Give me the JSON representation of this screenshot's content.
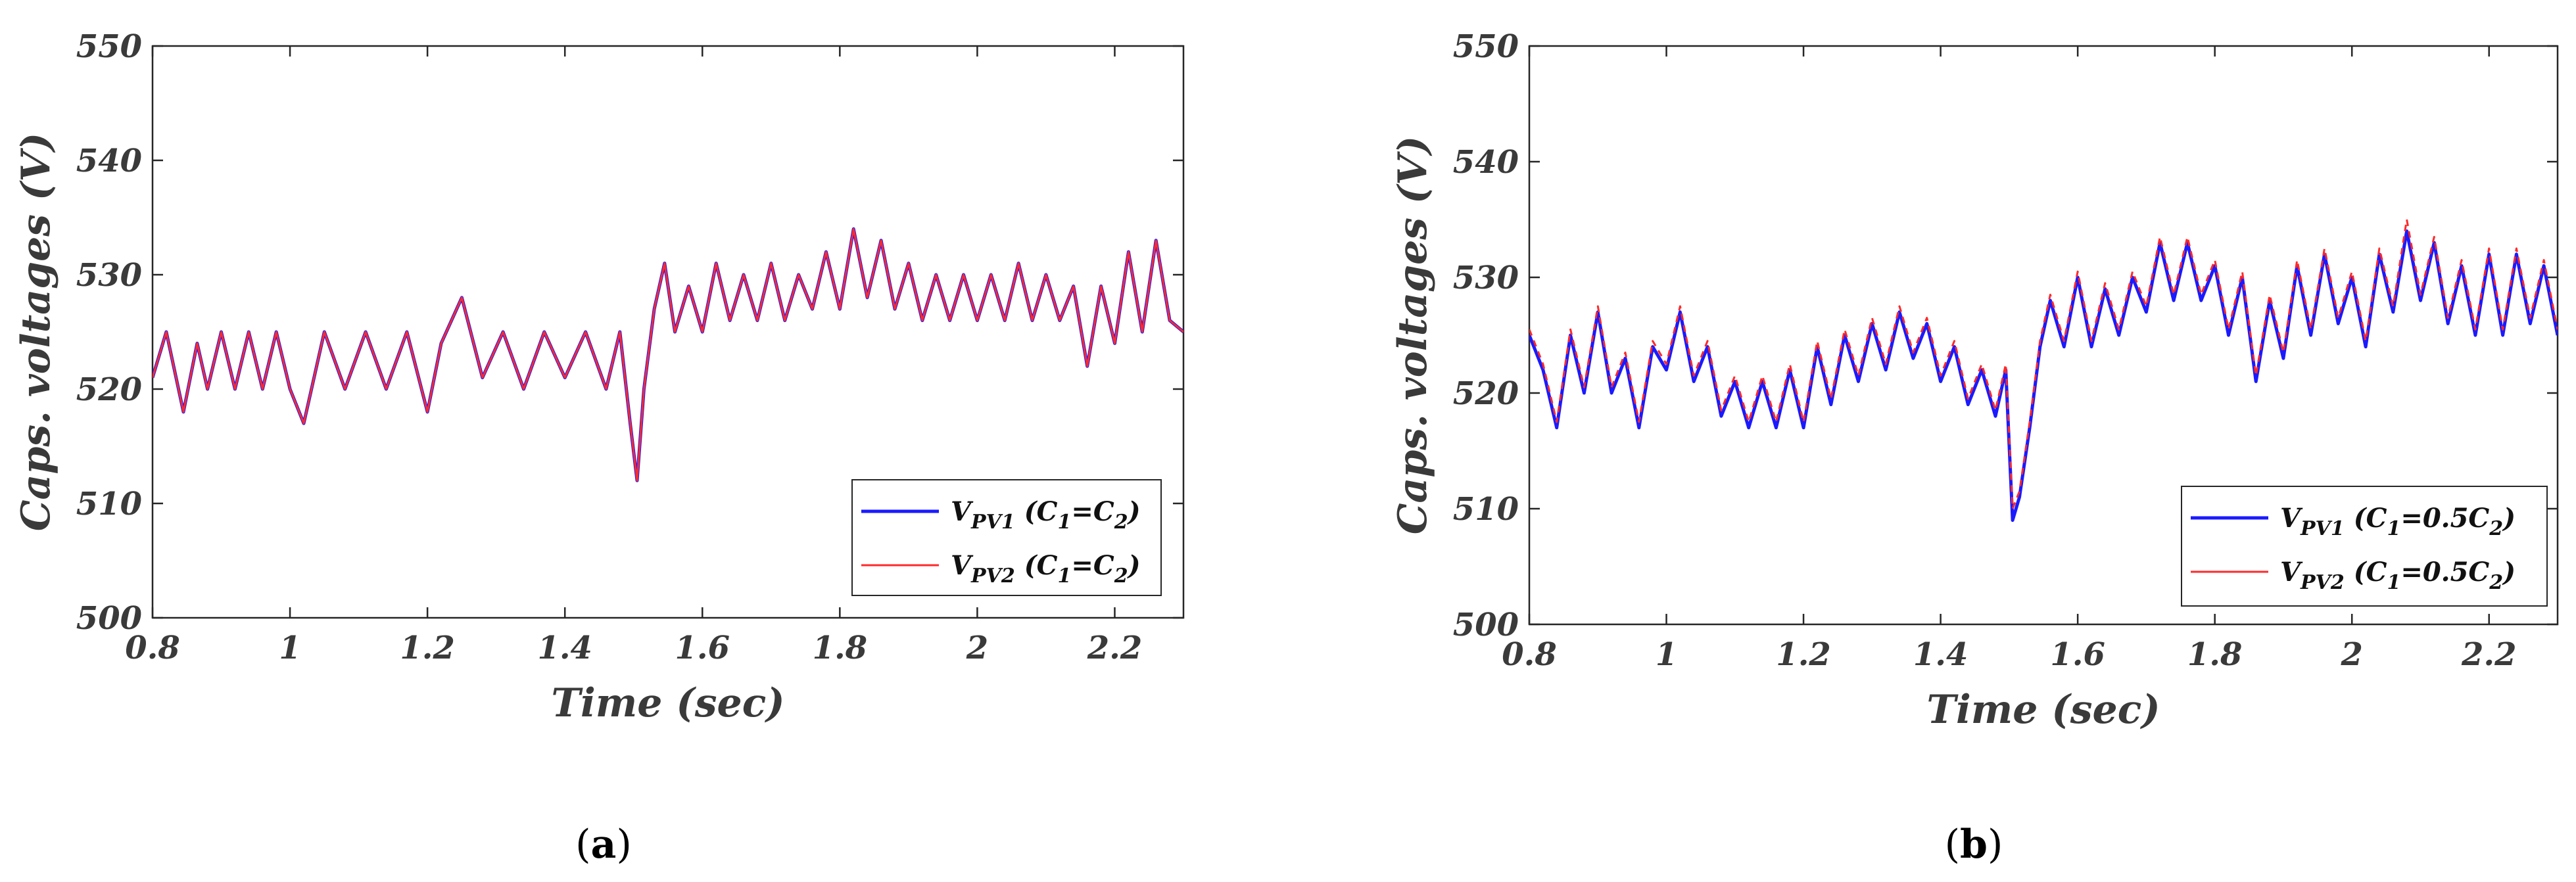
{
  "chart_data": [
    {
      "type": "line",
      "panel_label": "a",
      "title": "",
      "xlabel": "Time (sec)",
      "ylabel": "Caps. voltages (V)",
      "xlim": [
        0.8,
        2.3
      ],
      "ylim": [
        500,
        550
      ],
      "xticks": [
        0.8,
        1,
        1.2,
        1.4,
        1.6,
        1.8,
        2,
        2.2
      ],
      "xtick_labels": [
        "0.8",
        "1",
        "1.2",
        "1.4",
        "1.6",
        "1.8",
        "2",
        "2.2"
      ],
      "yticks": [
        500,
        510,
        520,
        530,
        540,
        550
      ],
      "ytick_labels": [
        "500",
        "510",
        "520",
        "530",
        "540",
        "550"
      ],
      "grid": false,
      "legend_position": "lower-right",
      "series": [
        {
          "name": "V_PV1 (C1=C2)",
          "legend_main": "V",
          "legend_sub1": "PV1",
          "legend_mid": " (C",
          "legend_sub2": "1",
          "legend_rest": "=C",
          "legend_sub3": "2",
          "legend_end": ")",
          "color": "#1a1aff",
          "dash": "",
          "x": [
            0.8,
            0.82,
            0.845,
            0.865,
            0.88,
            0.9,
            0.92,
            0.94,
            0.96,
            0.98,
            1.0,
            1.02,
            1.05,
            1.08,
            1.11,
            1.14,
            1.17,
            1.2,
            1.22,
            1.25,
            1.28,
            1.31,
            1.34,
            1.37,
            1.4,
            1.43,
            1.46,
            1.48,
            1.495,
            1.505,
            1.515,
            1.53,
            1.545,
            1.56,
            1.58,
            1.6,
            1.62,
            1.64,
            1.66,
            1.68,
            1.7,
            1.72,
            1.74,
            1.76,
            1.78,
            1.8,
            1.82,
            1.84,
            1.86,
            1.88,
            1.9,
            1.92,
            1.94,
            1.96,
            1.98,
            2.0,
            2.02,
            2.04,
            2.06,
            2.08,
            2.1,
            2.12,
            2.14,
            2.16,
            2.18,
            2.2,
            2.22,
            2.24,
            2.26,
            2.28,
            2.3
          ],
          "values": [
            521,
            525,
            518,
            524,
            520,
            525,
            520,
            525,
            520,
            525,
            520,
            517,
            525,
            520,
            525,
            520,
            525,
            518,
            524,
            528,
            521,
            525,
            520,
            525,
            521,
            525,
            520,
            525,
            517,
            512,
            520,
            527,
            531,
            525,
            529,
            525,
            531,
            526,
            530,
            526,
            531,
            526,
            530,
            527,
            532,
            527,
            534,
            528,
            533,
            527,
            531,
            526,
            530,
            526,
            530,
            526,
            530,
            526,
            531,
            526,
            530,
            526,
            529,
            522,
            529,
            524,
            532,
            525,
            533,
            526,
            525
          ]
        },
        {
          "name": "V_PV2 (C1=C2)",
          "legend_main": "V",
          "legend_sub1": "PV2",
          "legend_mid": " (C",
          "legend_sub2": "1",
          "legend_rest": "=C",
          "legend_sub3": "2",
          "legend_end": ")",
          "color": "#ff2a2a",
          "dash": "",
          "x": [
            0.8,
            0.82,
            0.845,
            0.865,
            0.88,
            0.9,
            0.92,
            0.94,
            0.96,
            0.98,
            1.0,
            1.02,
            1.05,
            1.08,
            1.11,
            1.14,
            1.17,
            1.2,
            1.22,
            1.25,
            1.28,
            1.31,
            1.34,
            1.37,
            1.4,
            1.43,
            1.46,
            1.48,
            1.495,
            1.505,
            1.515,
            1.53,
            1.545,
            1.56,
            1.58,
            1.6,
            1.62,
            1.64,
            1.66,
            1.68,
            1.7,
            1.72,
            1.74,
            1.76,
            1.78,
            1.8,
            1.82,
            1.84,
            1.86,
            1.88,
            1.9,
            1.92,
            1.94,
            1.96,
            1.98,
            2.0,
            2.02,
            2.04,
            2.06,
            2.08,
            2.1,
            2.12,
            2.14,
            2.16,
            2.18,
            2.2,
            2.22,
            2.24,
            2.26,
            2.28,
            2.3
          ],
          "values": [
            521,
            525,
            518,
            524,
            520,
            525,
            520,
            525,
            520,
            525,
            520,
            517,
            525,
            520,
            525,
            520,
            525,
            518,
            524,
            528,
            521,
            525,
            520,
            525,
            521,
            525,
            520,
            525,
            517,
            512,
            520,
            527,
            531,
            525,
            529,
            525,
            531,
            526,
            530,
            526,
            531,
            526,
            530,
            527,
            532,
            527,
            534,
            528,
            533,
            527,
            531,
            526,
            530,
            526,
            530,
            526,
            530,
            526,
            531,
            526,
            530,
            526,
            529,
            522,
            529,
            524,
            532,
            525,
            533,
            526,
            525
          ]
        }
      ]
    },
    {
      "type": "line",
      "panel_label": "b",
      "title": "",
      "xlabel": "Time (sec)",
      "ylabel": "Caps. voltages (V)",
      "xlim": [
        0.8,
        2.3
      ],
      "ylim": [
        500,
        550
      ],
      "xticks": [
        0.8,
        1,
        1.2,
        1.4,
        1.6,
        1.8,
        2,
        2.2
      ],
      "xtick_labels": [
        "0.8",
        "1",
        "1.2",
        "1.4",
        "1.6",
        "1.8",
        "2",
        "2.2"
      ],
      "yticks": [
        500,
        510,
        520,
        530,
        540,
        550
      ],
      "ytick_labels": [
        "500",
        "510",
        "520",
        "530",
        "540",
        "550"
      ],
      "grid": false,
      "legend_position": "lower-right",
      "series": [
        {
          "name": "V_PV1 (C1=0.5C2)",
          "legend_main": "V",
          "legend_sub1": "PV1",
          "legend_mid": " (C",
          "legend_sub2": "1",
          "legend_rest": "=0.5C",
          "legend_sub3": "2",
          "legend_end": ")",
          "color": "#1a1aff",
          "dash": "",
          "x": [
            0.8,
            0.82,
            0.84,
            0.86,
            0.88,
            0.9,
            0.92,
            0.94,
            0.96,
            0.98,
            1.0,
            1.02,
            1.04,
            1.06,
            1.08,
            1.1,
            1.12,
            1.14,
            1.16,
            1.18,
            1.2,
            1.22,
            1.24,
            1.26,
            1.28,
            1.3,
            1.32,
            1.34,
            1.36,
            1.38,
            1.4,
            1.42,
            1.44,
            1.46,
            1.48,
            1.495,
            1.505,
            1.515,
            1.53,
            1.545,
            1.56,
            1.58,
            1.6,
            1.62,
            1.64,
            1.66,
            1.68,
            1.7,
            1.72,
            1.74,
            1.76,
            1.78,
            1.8,
            1.82,
            1.84,
            1.86,
            1.88,
            1.9,
            1.92,
            1.94,
            1.96,
            1.98,
            2.0,
            2.02,
            2.04,
            2.06,
            2.08,
            2.1,
            2.12,
            2.14,
            2.16,
            2.18,
            2.2,
            2.22,
            2.24,
            2.26,
            2.28,
            2.3
          ],
          "values": [
            525,
            522,
            517,
            525,
            520,
            527,
            520,
            523,
            517,
            524,
            522,
            527,
            521,
            524,
            518,
            521,
            517,
            521,
            517,
            522,
            517,
            524,
            519,
            525,
            521,
            526,
            522,
            527,
            523,
            526,
            521,
            524,
            519,
            522,
            518,
            522,
            509,
            511,
            517,
            524,
            528,
            524,
            530,
            524,
            529,
            525,
            530,
            527,
            533,
            528,
            533,
            528,
            531,
            525,
            530,
            521,
            528,
            523,
            531,
            525,
            532,
            526,
            530,
            524,
            532,
            527,
            534,
            528,
            533,
            526,
            531,
            525,
            532,
            525,
            532,
            526,
            531,
            525
          ]
        },
        {
          "name": "V_PV2 (C1=0.5C2)",
          "legend_main": "V",
          "legend_sub1": "PV2",
          "legend_mid": " (C",
          "legend_sub2": "1",
          "legend_rest": "=0.5C",
          "legend_sub3": "2",
          "legend_end": ")",
          "color": "#ff2a2a",
          "dash": "10,8",
          "x": [
            0.8,
            0.82,
            0.84,
            0.86,
            0.88,
            0.9,
            0.92,
            0.94,
            0.96,
            0.98,
            1.0,
            1.02,
            1.04,
            1.06,
            1.08,
            1.1,
            1.12,
            1.14,
            1.16,
            1.18,
            1.2,
            1.22,
            1.24,
            1.26,
            1.28,
            1.3,
            1.32,
            1.34,
            1.36,
            1.38,
            1.4,
            1.42,
            1.44,
            1.46,
            1.48,
            1.495,
            1.505,
            1.515,
            1.53,
            1.545,
            1.56,
            1.58,
            1.6,
            1.62,
            1.64,
            1.66,
            1.68,
            1.7,
            1.72,
            1.74,
            1.76,
            1.78,
            1.8,
            1.82,
            1.84,
            1.86,
            1.88,
            1.9,
            1.92,
            1.94,
            1.96,
            1.98,
            2.0,
            2.02,
            2.04,
            2.06,
            2.08,
            2.1,
            2.12,
            2.14,
            2.16,
            2.18,
            2.2,
            2.22,
            2.24,
            2.26,
            2.28,
            2.3
          ],
          "values": [
            525.5,
            522.5,
            517.5,
            525.5,
            520.5,
            527.5,
            520.5,
            523.5,
            517.5,
            524.5,
            522.5,
            527.5,
            521.5,
            524.5,
            518.5,
            521.5,
            517.5,
            521.5,
            517.5,
            522.5,
            517.5,
            524.5,
            519.5,
            525.5,
            521.5,
            526.5,
            522.5,
            527.5,
            523.5,
            526.5,
            521.5,
            524.5,
            519.5,
            522.5,
            518.5,
            522.5,
            510,
            511.5,
            517.5,
            524.5,
            528.5,
            524.5,
            530.5,
            524.5,
            529.5,
            525.5,
            530.5,
            527.5,
            533.5,
            528.5,
            533.5,
            528.5,
            531.5,
            525.5,
            530.5,
            521.5,
            528.5,
            523.5,
            531.5,
            525.5,
            532.5,
            526.5,
            530.5,
            524.5,
            532.5,
            527.5,
            535,
            528.5,
            533.5,
            526.5,
            531.5,
            525.5,
            532.5,
            525.5,
            532.5,
            526.5,
            531.5,
            525.5
          ]
        }
      ]
    }
  ]
}
